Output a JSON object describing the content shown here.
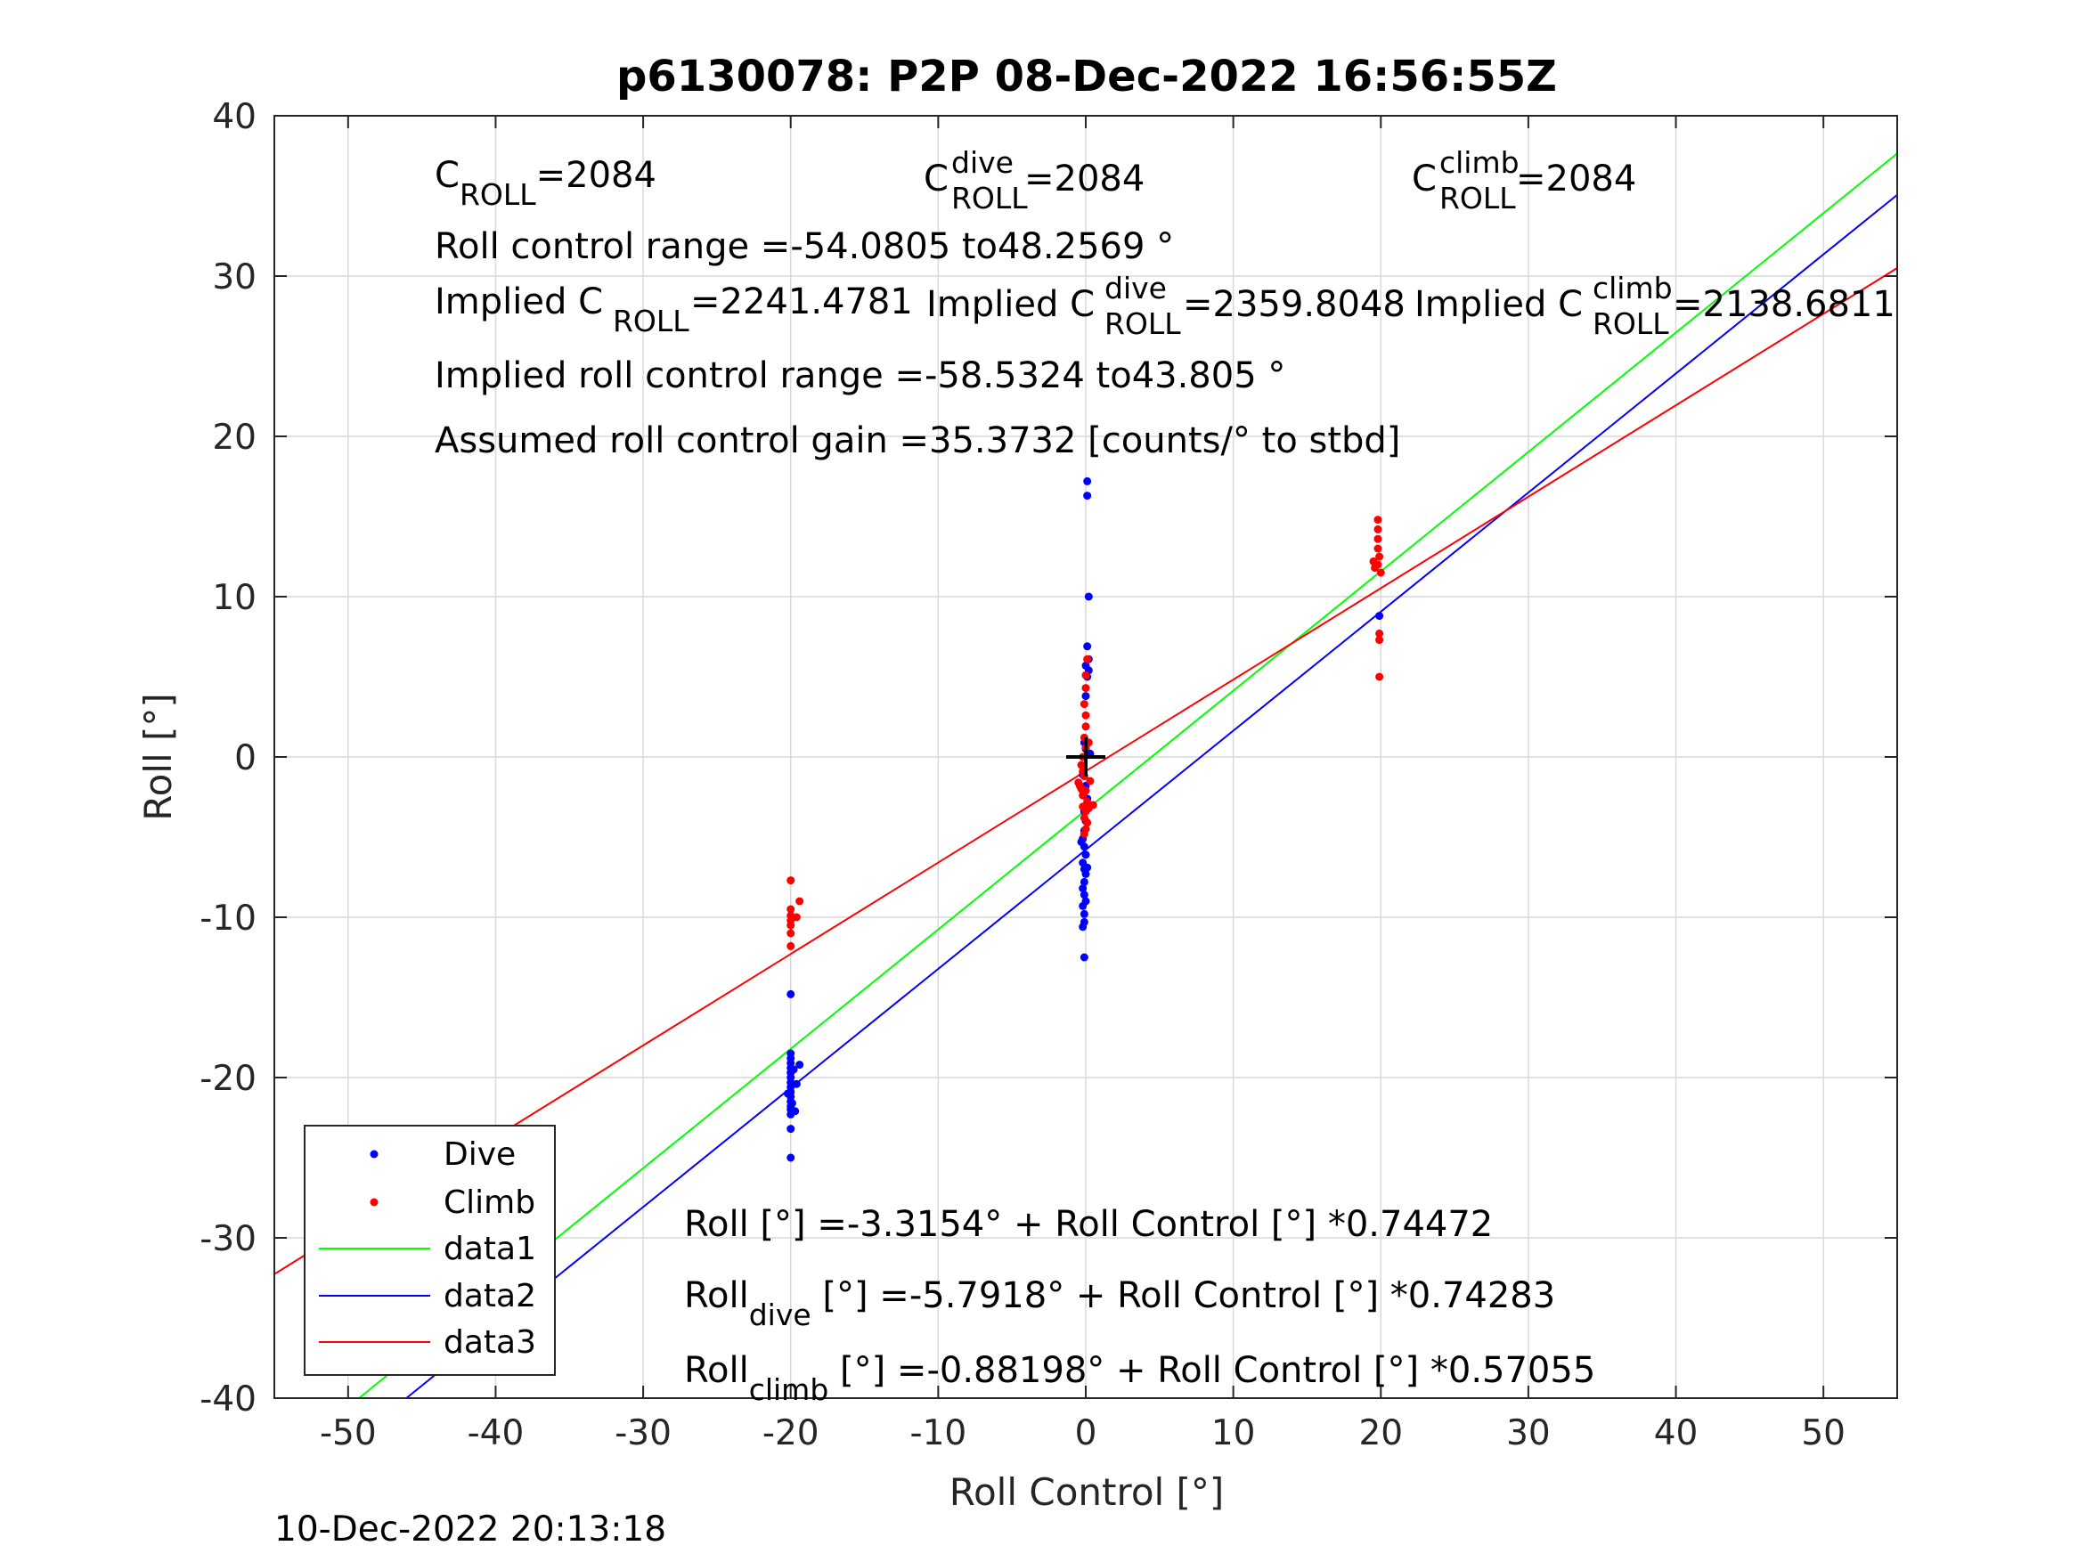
{
  "chart_data": {
    "type": "scatter",
    "title": "p6130078: P2P 08-Dec-2022 16:56:55Z",
    "xlabel": "Roll Control [°]",
    "ylabel": "Roll [°]",
    "xlim": [
      -55,
      55
    ],
    "ylim": [
      -40,
      40
    ],
    "xticks": [
      -50,
      -40,
      -30,
      -20,
      -10,
      0,
      10,
      20,
      30,
      40,
      50
    ],
    "yticks": [
      -40,
      -30,
      -20,
      -10,
      0,
      10,
      20,
      30,
      40
    ],
    "grid": true,
    "legend_position": "bottom-left",
    "series": [
      {
        "name": "Dive",
        "kind": "points",
        "color": "#0000ff",
        "points": [
          [
            -20,
            -14.8
          ],
          [
            -20,
            -18.5
          ],
          [
            -20,
            -18.8
          ],
          [
            -20,
            -19.1
          ],
          [
            -20,
            -19.4
          ],
          [
            -20,
            -19.7
          ],
          [
            -20,
            -20.0
          ],
          [
            -20,
            -20.3
          ],
          [
            -20,
            -20.6
          ],
          [
            -20,
            -20.9
          ],
          [
            -20,
            -21.2
          ],
          [
            -20,
            -21.5
          ],
          [
            -20,
            -21.8
          ],
          [
            -20,
            -22.0
          ],
          [
            -20,
            -22.3
          ],
          [
            -20,
            -23.2
          ],
          [
            -20,
            -25.0
          ],
          [
            -19.8,
            -19.5
          ],
          [
            -19.6,
            -20.4
          ],
          [
            -20.2,
            -21.0
          ],
          [
            -19.9,
            -21.6
          ],
          [
            -19.7,
            -22.1
          ],
          [
            -19.4,
            -19.2
          ],
          [
            0.1,
            17.2
          ],
          [
            0.1,
            16.3
          ],
          [
            0.2,
            10.0
          ],
          [
            0.1,
            6.9
          ],
          [
            0.2,
            6.1
          ],
          [
            0.0,
            5.7
          ],
          [
            0.2,
            5.4
          ],
          [
            0.1,
            5.0
          ],
          [
            0.0,
            3.8
          ],
          [
            -0.1,
            0.9
          ],
          [
            0.0,
            0.5
          ],
          [
            -0.2,
            -1.1
          ],
          [
            0.0,
            -1.8
          ],
          [
            0.1,
            -2.6
          ],
          [
            -0.1,
            -3.4
          ],
          [
            0.0,
            -4.0
          ],
          [
            -0.1,
            -4.6
          ],
          [
            -0.2,
            -5.1
          ],
          [
            -0.1,
            -5.6
          ],
          [
            0.0,
            -6.1
          ],
          [
            -0.2,
            -6.6
          ],
          [
            -0.1,
            -7.0
          ],
          [
            0.0,
            -7.3
          ],
          [
            -0.1,
            -7.8
          ],
          [
            -0.2,
            -8.2
          ],
          [
            -0.1,
            -8.6
          ],
          [
            0.0,
            -9.0
          ],
          [
            -0.2,
            -9.3
          ],
          [
            -0.1,
            -9.8
          ],
          [
            -0.1,
            -10.3
          ],
          [
            -0.2,
            -10.6
          ],
          [
            -0.1,
            -12.5
          ],
          [
            0.3,
            0.2
          ],
          [
            0.2,
            -3.1
          ],
          [
            -0.3,
            -5.3
          ],
          [
            0.1,
            -6.9
          ],
          [
            19.9,
            8.8
          ]
        ]
      },
      {
        "name": "Climb",
        "kind": "points",
        "color": "#ff0000",
        "points": [
          [
            -20,
            -7.7
          ],
          [
            -20,
            -9.5
          ],
          [
            -20,
            -9.9
          ],
          [
            -20,
            -10.2
          ],
          [
            -20,
            -10.5
          ],
          [
            -20,
            -11.0
          ],
          [
            -20,
            -11.8
          ],
          [
            -19.4,
            -9.0
          ],
          [
            -19.6,
            -10.0
          ],
          [
            0.1,
            6.1
          ],
          [
            0.0,
            5.1
          ],
          [
            0.0,
            4.3
          ],
          [
            -0.1,
            3.3
          ],
          [
            0.0,
            2.6
          ],
          [
            0.0,
            1.9
          ],
          [
            -0.1,
            1.2
          ],
          [
            0.0,
            0.6
          ],
          [
            -0.2,
            0.0
          ],
          [
            -0.3,
            -0.5
          ],
          [
            -0.2,
            -0.9
          ],
          [
            -0.1,
            -1.2
          ],
          [
            -0.5,
            -1.6
          ],
          [
            -0.4,
            -1.8
          ],
          [
            0.0,
            -2.1
          ],
          [
            -0.2,
            -2.4
          ],
          [
            0.1,
            -2.8
          ],
          [
            -0.2,
            -3.1
          ],
          [
            0.0,
            -3.4
          ],
          [
            -0.1,
            -3.8
          ],
          [
            0.1,
            -4.1
          ],
          [
            0.0,
            -4.5
          ],
          [
            -0.1,
            -4.8
          ],
          [
            0.2,
            -3.2
          ],
          [
            0.5,
            -3.0
          ],
          [
            0.3,
            -1.5
          ],
          [
            -0.3,
            -2.0
          ],
          [
            0.2,
            0.9
          ],
          [
            19.8,
            14.8
          ],
          [
            19.8,
            14.2
          ],
          [
            19.8,
            13.6
          ],
          [
            19.8,
            13.0
          ],
          [
            19.9,
            12.5
          ],
          [
            19.8,
            12.0
          ],
          [
            20.0,
            11.5
          ],
          [
            19.5,
            12.2
          ],
          [
            19.6,
            11.8
          ],
          [
            19.9,
            7.7
          ],
          [
            19.9,
            7.3
          ],
          [
            19.9,
            5.0
          ]
        ]
      },
      {
        "name": "data1",
        "kind": "line",
        "color": "#00ff00",
        "intercept": -3.3154,
        "slope": 0.74472
      },
      {
        "name": "data2",
        "kind": "line",
        "color": "#0000ff",
        "intercept": -5.7918,
        "slope": 0.74283
      },
      {
        "name": "data3",
        "kind": "line",
        "color": "#ff0000",
        "intercept": -0.88198,
        "slope": 0.57055
      }
    ],
    "marker": {
      "x": 0,
      "y": 0,
      "symbol": "+"
    }
  },
  "annotations": {
    "c_roll": {
      "base": "C",
      "sub": "ROLL",
      "value": "=2084"
    },
    "c_roll_dive": {
      "base": "C",
      "sup": "dive",
      "sub": "ROLL",
      "value": " =2084"
    },
    "c_roll_climb": {
      "base": "C",
      "sup": "climb",
      "sub": "ROLL",
      "value": " =2084"
    },
    "roll_range": "Roll control range =-54.0805 to48.2569 °",
    "implied": {
      "prefix": "Implied C",
      "sub": "ROLL",
      "value": " =2241.4781"
    },
    "implied_dive": {
      "prefix": "Implied C",
      "sup": "dive",
      "sub": "ROLL",
      "value": " =2359.8048"
    },
    "implied_climb": {
      "prefix": "Implied C",
      "sup": "climb",
      "sub": "ROLL",
      "value": " =2138.6811"
    },
    "implied_range": "Implied roll control range =-58.5324 to43.805 °",
    "gain": "Assumed roll control gain =35.3732 [counts/° to stbd]",
    "fit_all": "Roll [°] =-3.3154° + Roll Control [°] *0.74472",
    "fit_dive": {
      "base": "Roll",
      "sub": "dive",
      "value": " [°] =-5.7918° + Roll Control [°] *0.74283"
    },
    "fit_climb": {
      "base": "Roll",
      "sub": "climb",
      "value": " [°] =-0.88198° + Roll Control [°] *0.57055"
    }
  },
  "legend": [
    "Dive",
    "Climb",
    "data1",
    "data2",
    "data3"
  ],
  "timestamp": "10-Dec-2022 20:13:18"
}
